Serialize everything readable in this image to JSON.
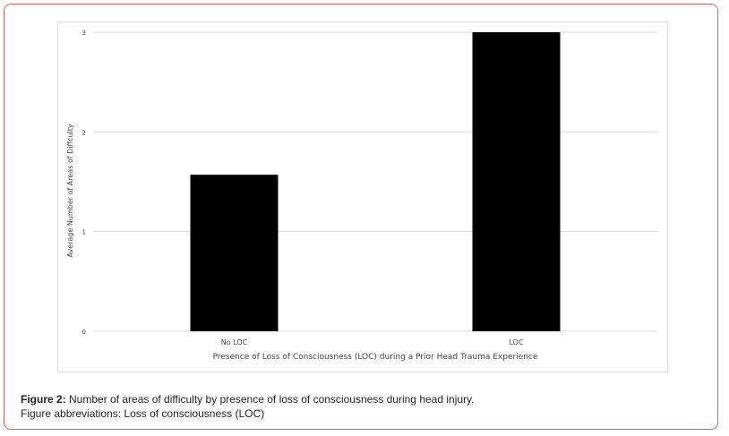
{
  "chart_data": {
    "type": "bar",
    "categories": [
      "No LOC",
      "LOC"
    ],
    "values": [
      1.57,
      3.0
    ],
    "xlabel": "Presence of Loss of Consciousness (LOC) during a Prior Head Trauma Experience",
    "ylabel": "Average Number of Areas of Diffculty",
    "ylim": [
      0,
      3
    ],
    "yticks": [
      "0",
      "1",
      "2",
      "3"
    ],
    "grid": true,
    "bar_color": "#000000"
  },
  "caption": {
    "label": "Figure 2:",
    "text": " Number of areas of difficulty by presence of loss of consciousness during head injury.",
    "abbreviations": "Figure abbreviations: Loss of consciousness (LOC)"
  }
}
